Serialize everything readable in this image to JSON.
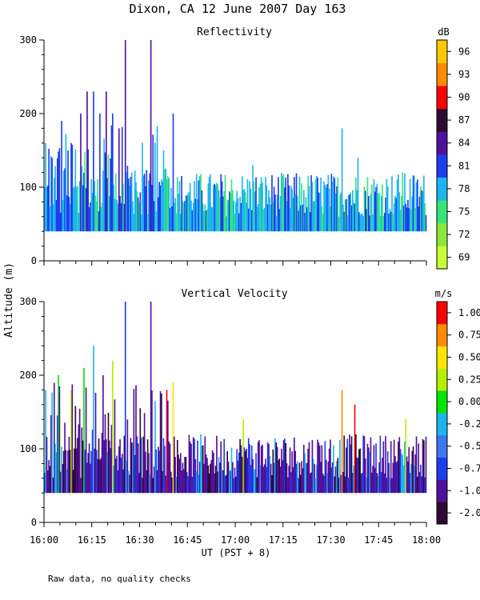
{
  "chart_data": {
    "type": "heatmap",
    "title": "Dixon, CA 12 June 2007  Day 163",
    "shared_ylabel": "Altitude (m)",
    "xlabel": "UT  (PST + 8)",
    "x_ticks": [
      "16:00",
      "16:15",
      "16:30",
      "16:45",
      "17:00",
      "17:15",
      "17:30",
      "17:45",
      "18:00"
    ],
    "x_range_hours": [
      16.0,
      18.0
    ],
    "footnote": "Raw data, no quality checks",
    "panels": [
      {
        "id": "reflectivity",
        "title": "Reflectivity",
        "ylim": [
          0,
          300
        ],
        "y_ticks": [
          "0",
          "100",
          "200",
          "300"
        ],
        "colorbar_unit": "dB",
        "colorbar_labels": [
          "69",
          "72",
          "75",
          "78",
          "81",
          "84",
          "87",
          "90",
          "93",
          "96"
        ],
        "colorbar_colors": [
          "#c8ff32",
          "#8ce63c",
          "#32e678",
          "#1eb4f0",
          "#1e3cf0",
          "#50109c",
          "#2d0a32",
          "#ff0000",
          "#ff8c00",
          "#ffc800"
        ],
        "echo_base_m": 40,
        "typical_top_m": 100,
        "columns": [
          {
            "t": "16:00",
            "top": 160,
            "class": 3
          },
          {
            "t": "16:02",
            "top": 140,
            "class": 4
          },
          {
            "t": "16:05",
            "top": 190,
            "class": 4
          },
          {
            "t": "16:08",
            "top": 160,
            "class": 4
          },
          {
            "t": "16:11",
            "top": 200,
            "class": 5
          },
          {
            "t": "16:13",
            "top": 230,
            "class": 5
          },
          {
            "t": "16:15",
            "top": 230,
            "class": 4
          },
          {
            "t": "16:17",
            "top": 200,
            "class": 4
          },
          {
            "t": "16:19",
            "top": 230,
            "class": 5
          },
          {
            "t": "16:21",
            "top": 200,
            "class": 4
          },
          {
            "t": "16:23",
            "top": 180,
            "class": 5
          },
          {
            "t": "16:25",
            "top": 300,
            "class": 5
          },
          {
            "t": "16:27",
            "top": 120,
            "class": 3
          },
          {
            "t": "16:33",
            "top": 300,
            "class": 5
          },
          {
            "t": "16:37",
            "top": 150,
            "class": 3
          },
          {
            "t": "16:40",
            "top": 200,
            "class": 4
          },
          {
            "t": "17:05",
            "top": 130,
            "class": 3
          },
          {
            "t": "17:33",
            "top": 180,
            "class": 3
          },
          {
            "t": "17:38",
            "top": 140,
            "class": 3
          },
          {
            "t": "17:52",
            "top": 120,
            "class": 2
          }
        ]
      },
      {
        "id": "vertical-velocity",
        "title": "Vertical Velocity",
        "ylim": [
          0,
          300
        ],
        "y_ticks": [
          "0",
          "100",
          "200",
          "300"
        ],
        "colorbar_unit": "m/s",
        "colorbar_labels": [
          "-2.00",
          "-1.00",
          "-0.75",
          "-0.50",
          "-0.25",
          "0.00",
          "0.25",
          "0.50",
          "0.75",
          "1.00"
        ],
        "colorbar_colors": [
          "#2d0a32",
          "#50109c",
          "#1e3cf0",
          "#3c78f0",
          "#1eb4f0",
          "#00e600",
          "#b4f000",
          "#ffe600",
          "#ff8c00",
          "#ff0000"
        ],
        "echo_base_m": 40,
        "typical_top_m": 100,
        "columns": [
          {
            "t": "16:00",
            "top": 180,
            "class": 4
          },
          {
            "t": "16:04",
            "top": 200,
            "class": 5
          },
          {
            "t": "16:08",
            "top": 180,
            "class": 6
          },
          {
            "t": "16:12",
            "top": 210,
            "class": 5
          },
          {
            "t": "16:15",
            "top": 240,
            "class": 4
          },
          {
            "t": "16:18",
            "top": 200,
            "class": 1
          },
          {
            "t": "16:21",
            "top": 220,
            "class": 6
          },
          {
            "t": "16:25",
            "top": 300,
            "class": 2
          },
          {
            "t": "16:33",
            "top": 300,
            "class": 1
          },
          {
            "t": "16:38",
            "top": 180,
            "class": 9
          },
          {
            "t": "16:40",
            "top": 190,
            "class": 7
          },
          {
            "t": "17:02",
            "top": 140,
            "class": 6
          },
          {
            "t": "17:33",
            "top": 180,
            "class": 8
          },
          {
            "t": "17:37",
            "top": 160,
            "class": 9
          },
          {
            "t": "17:53",
            "top": 140,
            "class": 6
          }
        ]
      }
    ]
  }
}
